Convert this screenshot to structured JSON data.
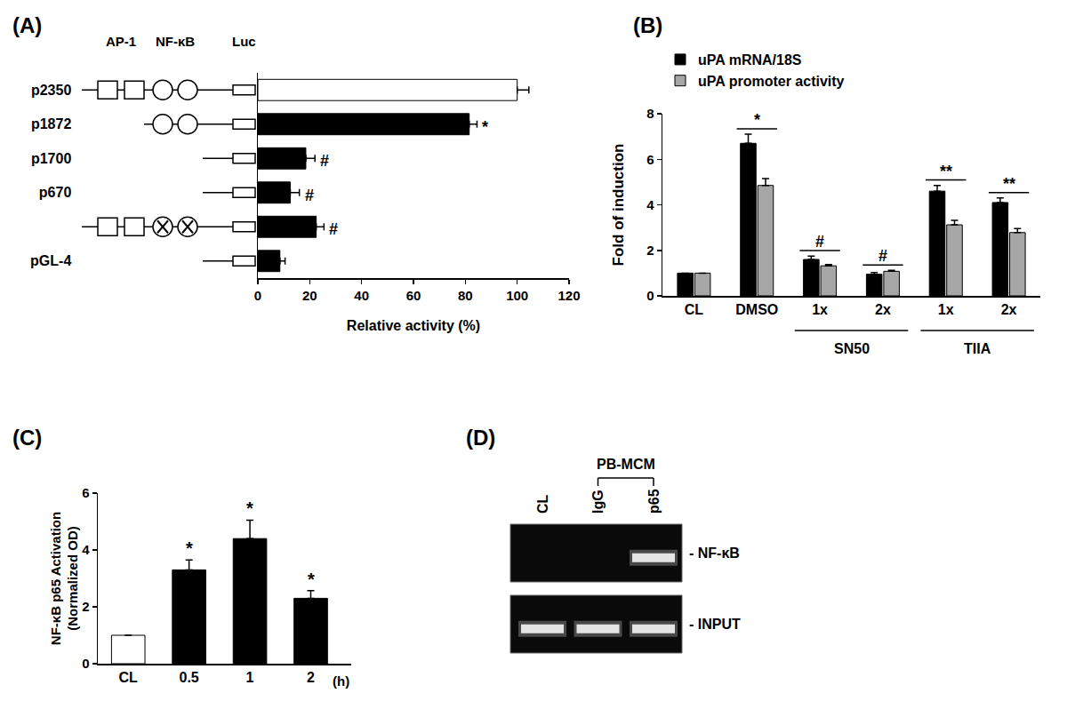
{
  "chart_data": [
    {
      "panel": "(A)",
      "type": "bar",
      "orientation": "horizontal",
      "categories": [
        "p2350",
        "p1872",
        "p1700",
        "p670",
        null,
        "pGL-4"
      ],
      "values": [
        100,
        81.5,
        18.5,
        12.5,
        22.5,
        8.5
      ],
      "errors": [
        4.5,
        3,
        3.5,
        3.5,
        3,
        2
      ],
      "colors": [
        "#ffffff",
        "#000000",
        "#000000",
        "#000000",
        "#000000",
        "#000000"
      ],
      "significance": [
        null,
        "*",
        "#",
        "#",
        "#",
        null
      ],
      "site_labels": [
        "AP-1",
        "NF-κB",
        "Luc"
      ],
      "ap1_sites": [
        2,
        0,
        0,
        0,
        2,
        0
      ],
      "nfkb_sites": [
        2,
        2,
        0,
        0,
        2,
        0
      ],
      "nfkb_mutated": [
        false,
        false,
        false,
        false,
        true,
        false
      ],
      "xlabel": "Relative activity (%)",
      "xlim": [
        0,
        120
      ],
      "xticks": [
        0,
        20,
        40,
        60,
        80,
        100,
        120
      ],
      "grid": false
    },
    {
      "panel": "(B)",
      "type": "bar",
      "categories": [
        "CL",
        "DMSO",
        "1x",
        "2x",
        "1x",
        "2x"
      ],
      "groups": [
        null,
        null,
        "SN50",
        "SN50",
        "TIIA",
        "TIIA"
      ],
      "series": [
        {
          "name": "uPA mRNA/18S",
          "color": "#000000",
          "values": [
            1,
            6.7,
            1.6,
            0.95,
            4.6,
            4.1
          ],
          "errors": [
            null,
            0.4,
            0.15,
            0.07,
            0.25,
            0.2
          ]
        },
        {
          "name": "uPA promoter activity",
          "color": "#a6a6a6",
          "values": [
            1,
            4.85,
            1.32,
            1.08,
            3.12,
            2.78
          ],
          "errors": [
            null,
            0.3,
            0.06,
            0.04,
            0.2,
            0.18
          ]
        }
      ],
      "significance": [
        null,
        "*",
        "#",
        "#",
        "**",
        "**"
      ],
      "ylabel": "Fold of induction",
      "ylim": [
        0,
        8
      ],
      "yticks": [
        0,
        2,
        4,
        6,
        8
      ],
      "legend": "top left",
      "grid": false
    },
    {
      "panel": "(C)",
      "type": "bar",
      "categories": [
        "CL",
        "0.5",
        "1",
        "2"
      ],
      "values": [
        1,
        3.3,
        4.4,
        2.3
      ],
      "errors": [
        null,
        0.35,
        0.65,
        0.27
      ],
      "colors": [
        "#ffffff",
        "#000000",
        "#000000",
        "#000000"
      ],
      "significance": [
        null,
        "*",
        "*",
        "*"
      ],
      "ylabel": [
        "NF-κB p65 Activation",
        "(Normalized OD)"
      ],
      "x_unit": "(h)",
      "ylim": [
        0,
        6
      ],
      "yticks": [
        0,
        2,
        4,
        6
      ],
      "grid": false
    },
    {
      "panel": "(D)",
      "type": "gel",
      "lanes": [
        "CL",
        "IgG",
        "p65"
      ],
      "lane_group": {
        "label": "PB-MCM",
        "lanes": [
          "IgG",
          "p65"
        ]
      },
      "rows": [
        {
          "label": "- NF-κB",
          "bands": [
            false,
            false,
            true
          ]
        },
        {
          "label": "- INPUT",
          "bands": [
            true,
            true,
            true
          ]
        }
      ]
    }
  ]
}
